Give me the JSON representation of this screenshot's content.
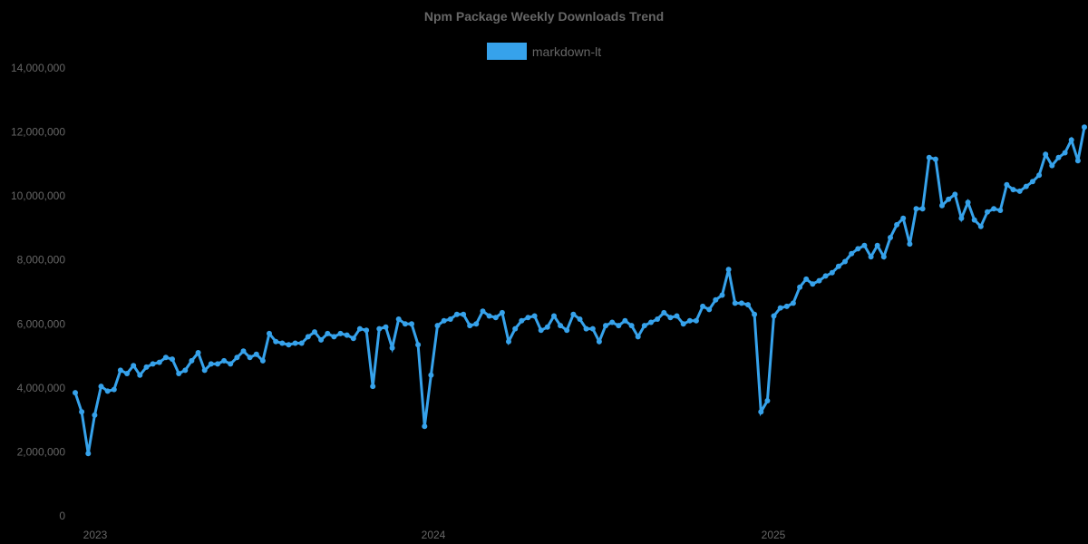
{
  "chart_data": {
    "type": "line",
    "title": "Npm Package Weekly Downloads Trend",
    "xlabel": "",
    "ylabel": "",
    "ylim": [
      0,
      14000000
    ],
    "grid": false,
    "legend_position": "top",
    "y_ticks": [
      "0",
      "2,000,000",
      "4,000,000",
      "6,000,000",
      "8,000,000",
      "10,000,000",
      "12,000,000",
      "14,000,000"
    ],
    "x_ticks": [
      "2023",
      "2024",
      "2025"
    ],
    "series": [
      {
        "name": "markdown-lt",
        "color": "#36a2eb",
        "start_week": "2022-12-12",
        "interval": "weekly",
        "values_millions": [
          3.85,
          3.25,
          1.95,
          3.15,
          4.05,
          3.9,
          3.95,
          4.55,
          4.45,
          4.7,
          4.4,
          4.65,
          4.75,
          4.8,
          4.95,
          4.9,
          4.45,
          4.55,
          4.85,
          5.1,
          4.55,
          4.75,
          4.75,
          4.85,
          4.75,
          4.95,
          5.15,
          4.95,
          5.05,
          4.85,
          5.7,
          5.45,
          5.4,
          5.35,
          5.4,
          5.4,
          5.6,
          5.75,
          5.5,
          5.7,
          5.6,
          5.7,
          5.65,
          5.55,
          5.85,
          5.8,
          4.05,
          5.85,
          5.9,
          5.25,
          6.15,
          6.0,
          6.0,
          5.35,
          2.8,
          4.4,
          5.95,
          6.1,
          6.15,
          6.3,
          6.3,
          5.95,
          6.0,
          6.4,
          6.25,
          6.2,
          6.35,
          5.45,
          5.85,
          6.1,
          6.2,
          6.25,
          5.8,
          5.9,
          6.25,
          5.95,
          5.8,
          6.3,
          6.15,
          5.85,
          5.85,
          5.45,
          5.95,
          6.05,
          5.95,
          6.1,
          5.95,
          5.6,
          5.95,
          6.05,
          6.15,
          6.35,
          6.2,
          6.25,
          6.0,
          6.1,
          6.1,
          6.55,
          6.45,
          6.75,
          6.9,
          7.7,
          6.65,
          6.65,
          6.6,
          6.3,
          3.25,
          3.6,
          6.25,
          6.5,
          6.55,
          6.65,
          7.15,
          7.4,
          7.25,
          7.35,
          7.5,
          7.6,
          7.8,
          7.95,
          8.2,
          8.35,
          8.45,
          8.1,
          8.45,
          8.1,
          8.7,
          9.1,
          9.3,
          8.5,
          9.6,
          9.6,
          11.2,
          11.15,
          9.7,
          9.9,
          10.05,
          9.3,
          9.8,
          9.25,
          9.05,
          9.5,
          9.6,
          9.55,
          10.35,
          10.2,
          10.15,
          10.3,
          10.45,
          10.65,
          11.3,
          10.95,
          11.2,
          11.35,
          11.75,
          11.1,
          12.15
        ]
      }
    ]
  },
  "legend": {
    "label": "markdown-lt",
    "color": "#36a2eb"
  }
}
